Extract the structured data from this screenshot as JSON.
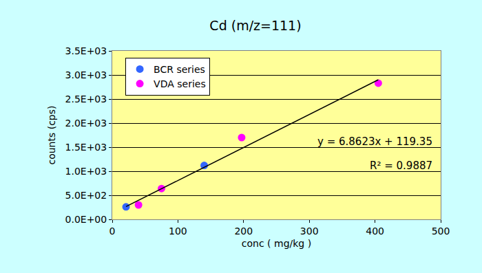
{
  "chart_data": {
    "type": "scatter",
    "title": "Cd (m/z=111)",
    "x_label": "conc ( mg/kg )",
    "y_label": "counts (cps)",
    "marker": "circle",
    "series": [
      {
        "name": "BCR series",
        "color": "#3366ff",
        "type": "scatter",
        "x": [
          21,
          140
        ],
        "values": [
          260,
          1120
        ]
      },
      {
        "name": "VDA series",
        "color": "#ff00ff",
        "type": "scatter",
        "x": [
          40,
          75,
          197,
          405
        ],
        "values": [
          300,
          640,
          1700,
          2830
        ]
      },
      {
        "color": "#000000",
        "type": "line",
        "x": [
          21,
          405
        ],
        "values": [
          265,
          2900
        ]
      }
    ],
    "annotations": [
      "y = 6.8623x + 119.35",
      "R² = 0.9887"
    ],
    "xlim": [
      0,
      500
    ],
    "xticks": [
      0,
      100,
      200,
      300,
      400,
      500
    ],
    "ylim": [
      0,
      3500
    ],
    "yticks": [
      {
        "value": 0,
        "label": "0.0E+00"
      },
      {
        "value": 500,
        "label": "5.0E+02"
      },
      {
        "value": 1000,
        "label": "1.0E+03"
      },
      {
        "value": 1500,
        "label": "1.5E+03"
      },
      {
        "value": 2000,
        "label": "2.0E+03"
      },
      {
        "value": 2500,
        "label": "2.5E+03"
      },
      {
        "value": 3000,
        "label": "3.0E+03"
      },
      {
        "value": 3500,
        "label": "3.5E+03"
      }
    ],
    "grid": true,
    "legend": "upper left"
  }
}
